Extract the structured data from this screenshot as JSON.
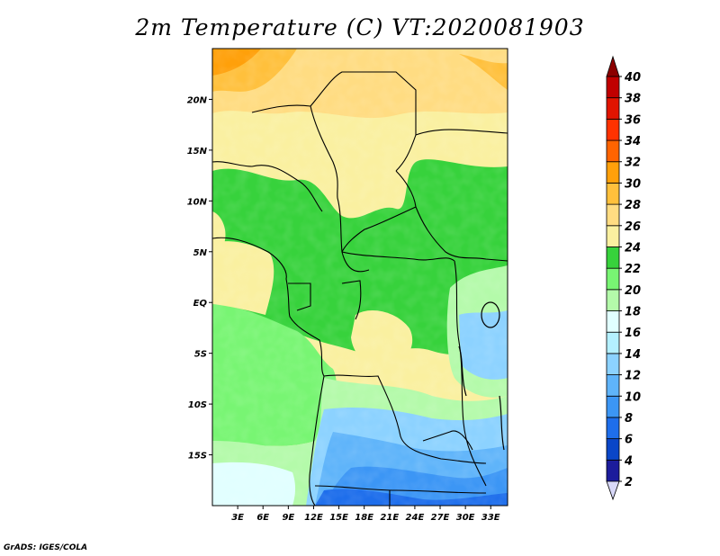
{
  "title": "2m Temperature (C) VT:2020081903",
  "credit": "GrADS: IGES/COLA",
  "map": {
    "lon_range": [
      0,
      35
    ],
    "lat_range": [
      -20,
      25
    ],
    "lon_ticks": [
      {
        "value": 3,
        "label": "3E"
      },
      {
        "value": 6,
        "label": "6E"
      },
      {
        "value": 9,
        "label": "9E"
      },
      {
        "value": 12,
        "label": "12E"
      },
      {
        "value": 15,
        "label": "15E"
      },
      {
        "value": 18,
        "label": "18E"
      },
      {
        "value": 21,
        "label": "21E"
      },
      {
        "value": 24,
        "label": "24E"
      },
      {
        "value": 27,
        "label": "27E"
      },
      {
        "value": 30,
        "label": "30E"
      },
      {
        "value": 33,
        "label": "33E"
      }
    ],
    "lat_ticks": [
      {
        "value": 20,
        "label": "20N"
      },
      {
        "value": 15,
        "label": "15N"
      },
      {
        "value": 10,
        "label": "10N"
      },
      {
        "value": 5,
        "label": "5N"
      },
      {
        "value": 0,
        "label": "EQ"
      },
      {
        "value": -5,
        "label": "5S"
      },
      {
        "value": -10,
        "label": "10S"
      },
      {
        "value": -15,
        "label": "15S"
      }
    ]
  },
  "colorbar": {
    "levels": [
      2,
      4,
      6,
      8,
      10,
      12,
      14,
      16,
      18,
      20,
      22,
      24,
      26,
      28,
      30,
      32,
      34,
      36,
      38,
      40
    ],
    "colors": [
      "#1c1c9c",
      "#0a46c8",
      "#1e6eeb",
      "#3c96f5",
      "#5fb4fa",
      "#8cd2ff",
      "#b4f0ff",
      "#e1ffff",
      "#b4faaa",
      "#78f573",
      "#37d23c",
      "#faf0a0",
      "#ffdc82",
      "#ffc03c",
      "#ffa00a",
      "#ff6400",
      "#ff3200",
      "#e11400",
      "#c00000",
      "#a50000"
    ],
    "under_color": "#d8d8f8",
    "over_color": "#8b0000"
  }
}
